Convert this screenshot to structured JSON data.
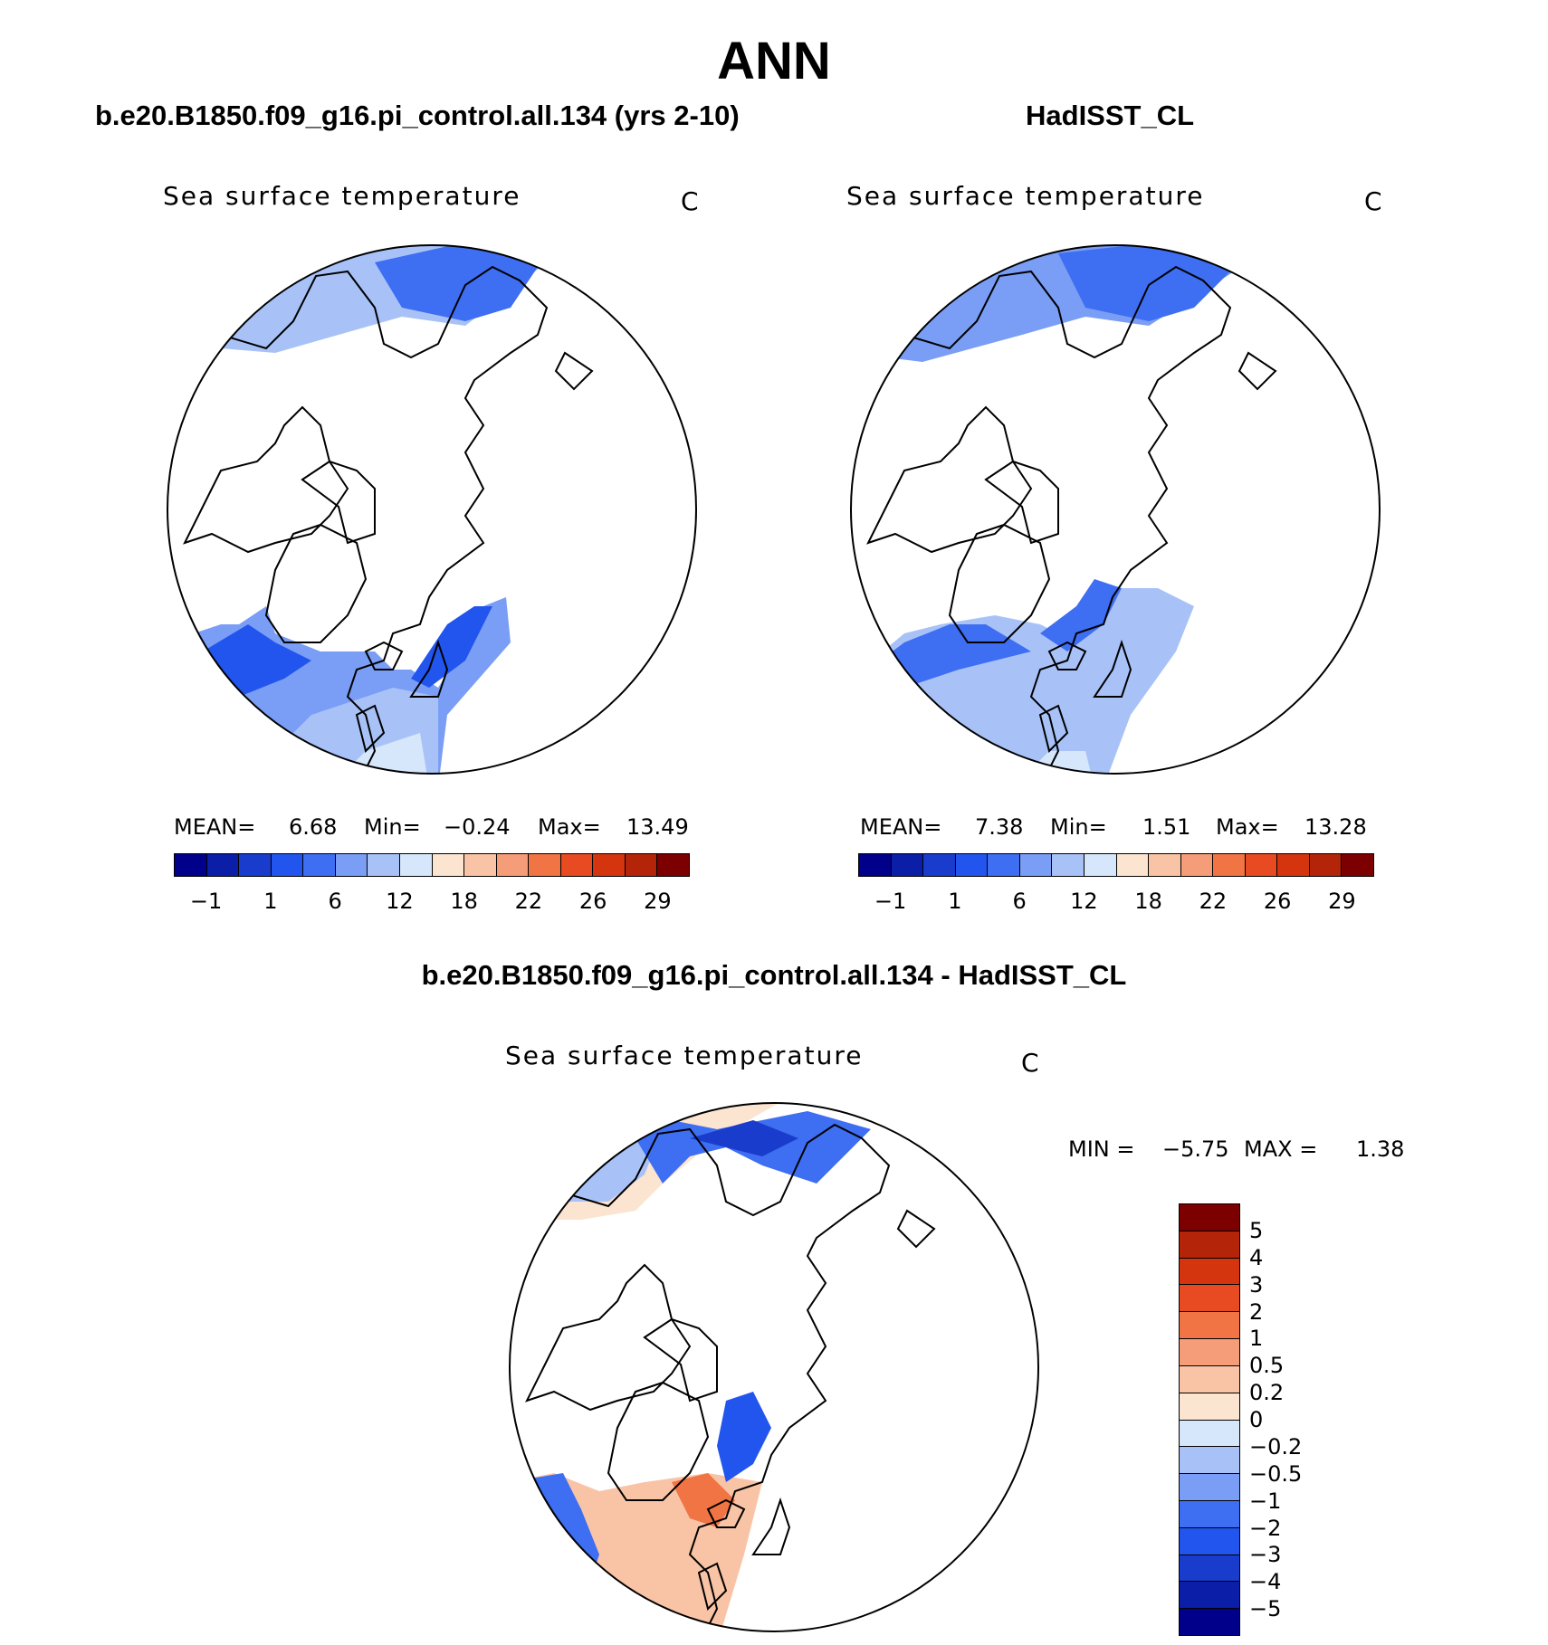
{
  "figure": {
    "title": "ANN"
  },
  "panels": {
    "model": {
      "title": "b.e20.B1850.f09_g16.pi_control.all.134 (yrs 2-10)",
      "variable": "Sea surface temperature",
      "units": "C",
      "mean_label": "MEAN=",
      "mean_value": "6.68",
      "min_label": "Min=",
      "min_value": "−0.24",
      "max_label": "Max=",
      "max_value": "13.49"
    },
    "obs": {
      "title": "HadISST_CL",
      "variable": "Sea surface temperature",
      "units": "C",
      "mean_label": "MEAN=",
      "mean_value": "7.38",
      "min_label": "Min=",
      "min_value": "1.51",
      "max_label": "Max=",
      "max_value": "13.28"
    },
    "diff": {
      "title": "b.e20.B1850.f09_g16.pi_control.all.134 - HadISST_CL",
      "variable": "Sea surface temperature",
      "units": "C",
      "min_label": "MIN =",
      "min_value": "−5.75",
      "max_label": "MAX =",
      "max_value": "1.38"
    }
  },
  "colorbar_abs": {
    "tick_labels": [
      "−1",
      "1",
      "6",
      "12",
      "18",
      "22",
      "26",
      "29"
    ],
    "colors": [
      "#00008a",
      "#0a1ea8",
      "#1a3ccc",
      "#2255ee",
      "#3e6ef2",
      "#7a9ef5",
      "#a8c2f8",
      "#d6e6fb",
      "#fbe4d0",
      "#f9c4a6",
      "#f59d78",
      "#f07444",
      "#e84a22",
      "#d4350f",
      "#b32408",
      "#7d0000"
    ]
  },
  "colorbar_diff": {
    "tick_labels": [
      "5",
      "4",
      "3",
      "2",
      "1",
      "0.5",
      "0.2",
      "0",
      "−0.2",
      "−0.5",
      "−1",
      "−2",
      "−3",
      "−4",
      "−5"
    ],
    "colors": [
      "#7d0000",
      "#b32408",
      "#d4350f",
      "#e84a22",
      "#f07444",
      "#f59d78",
      "#f9c4a6",
      "#fbe4d0",
      "#d6e6fb",
      "#a8c2f8",
      "#7a9ef5",
      "#3e6ef2",
      "#2255ee",
      "#1a3ccc",
      "#0a1ea8",
      "#00008a"
    ]
  }
}
